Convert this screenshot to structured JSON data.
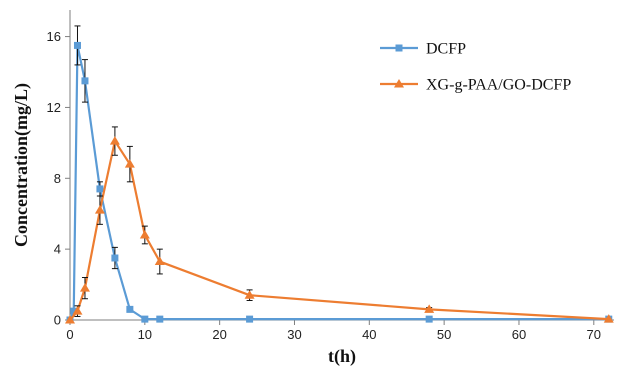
{
  "chart_data": {
    "type": "line",
    "title": "",
    "xlabel": "t(h)",
    "ylabel": "Concentration(mg/L)",
    "xlim": [
      0,
      72
    ],
    "ylim": [
      0,
      17.5
    ],
    "xticks": [
      0,
      10,
      20,
      30,
      40,
      50,
      60,
      70
    ],
    "yticks": [
      0,
      4,
      8,
      12,
      16
    ],
    "grid": false,
    "legend_position": "top-right",
    "series": [
      {
        "name": "DCFP",
        "color": "#5b9bd5",
        "marker": "square",
        "points": [
          {
            "x": 0,
            "y": 0,
            "err": 0
          },
          {
            "x": 0.5,
            "y": 0.5,
            "err": 0
          },
          {
            "x": 1,
            "y": 15.5,
            "err": 1.1
          },
          {
            "x": 2,
            "y": 13.5,
            "err": 1.2
          },
          {
            "x": 4,
            "y": 7.4,
            "err": 0.4
          },
          {
            "x": 6,
            "y": 3.5,
            "err": 0.6
          },
          {
            "x": 8,
            "y": 0.6,
            "err": 0
          },
          {
            "x": 10,
            "y": 0.05,
            "err": 0
          },
          {
            "x": 12,
            "y": 0.05,
            "err": 0
          },
          {
            "x": 24,
            "y": 0.05,
            "err": 0
          },
          {
            "x": 48,
            "y": 0.05,
            "err": 0
          },
          {
            "x": 72,
            "y": 0.05,
            "err": 0
          }
        ]
      },
      {
        "name": "XG-g-PAA/GO-DCFP",
        "color": "#ed7d31",
        "marker": "triangle",
        "points": [
          {
            "x": 0,
            "y": 0,
            "err": 0
          },
          {
            "x": 1,
            "y": 0.5,
            "err": 0.3
          },
          {
            "x": 2,
            "y": 1.8,
            "err": 0.6
          },
          {
            "x": 4,
            "y": 6.2,
            "err": 0.8
          },
          {
            "x": 6,
            "y": 10.1,
            "err": 0.8
          },
          {
            "x": 8,
            "y": 8.8,
            "err": 1.0
          },
          {
            "x": 10,
            "y": 4.8,
            "err": 0.5
          },
          {
            "x": 12,
            "y": 3.3,
            "err": 0.7
          },
          {
            "x": 24,
            "y": 1.4,
            "err": 0.3
          },
          {
            "x": 48,
            "y": 0.6,
            "err": 0.1
          },
          {
            "x": 72,
            "y": 0.05,
            "err": 0
          }
        ]
      }
    ]
  }
}
